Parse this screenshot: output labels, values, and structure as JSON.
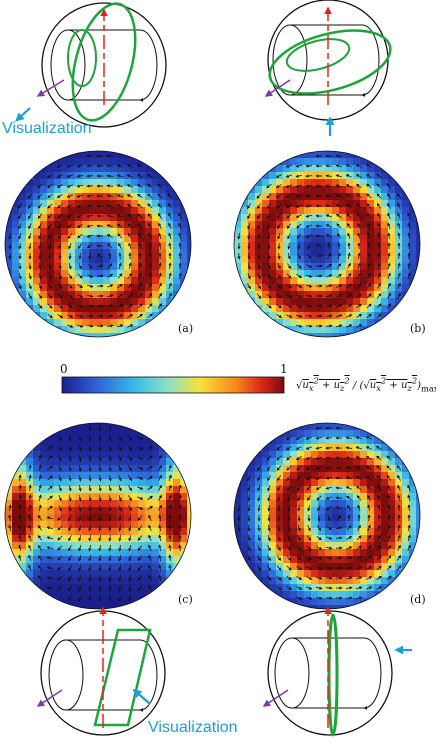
{
  "panels": [
    {
      "id": "a",
      "label": "(a)",
      "vortex": {
        "cx": 0.0,
        "cy": 0.15,
        "rotation": "ccw",
        "ring_radius": 0.55
      }
    },
    {
      "id": "b",
      "label": "(b)",
      "vortex": {
        "cx": -0.1,
        "cy": 0.05,
        "rotation": "ccw",
        "ring_radius": 0.6
      }
    },
    {
      "id": "c",
      "label": "(c)",
      "vortex": {
        "cx": 0.0,
        "cy": 0.0,
        "rotation": "cw",
        "ring_radius": 0.4
      }
    },
    {
      "id": "d",
      "label": "(d)",
      "vortex": {
        "cx": 0.1,
        "cy": 0.0,
        "rotation": "ccw",
        "ring_radius": 0.55
      }
    }
  ],
  "colorbar": {
    "min_label": "0",
    "max_label": "1",
    "colors": [
      "#1a1f8c",
      "#2f5fd6",
      "#35b8e8",
      "#8fe0c8",
      "#f7e23a",
      "#f78a1f",
      "#d9271a",
      "#7a0c0c"
    ],
    "formula_main": "√(u",
    "formula_text": "u_x² + u_z² / (√(u_x² + u_z²))_max"
  },
  "annotations": {
    "visualization_top": "Visualization",
    "visualization_bottom": "Visualization"
  },
  "colors": {
    "plane_green": "#1fa33b",
    "arrow_red": "#e0261a",
    "arrow_purple": "#7a3ba0",
    "arrow_blue": "#1a9fd9"
  }
}
